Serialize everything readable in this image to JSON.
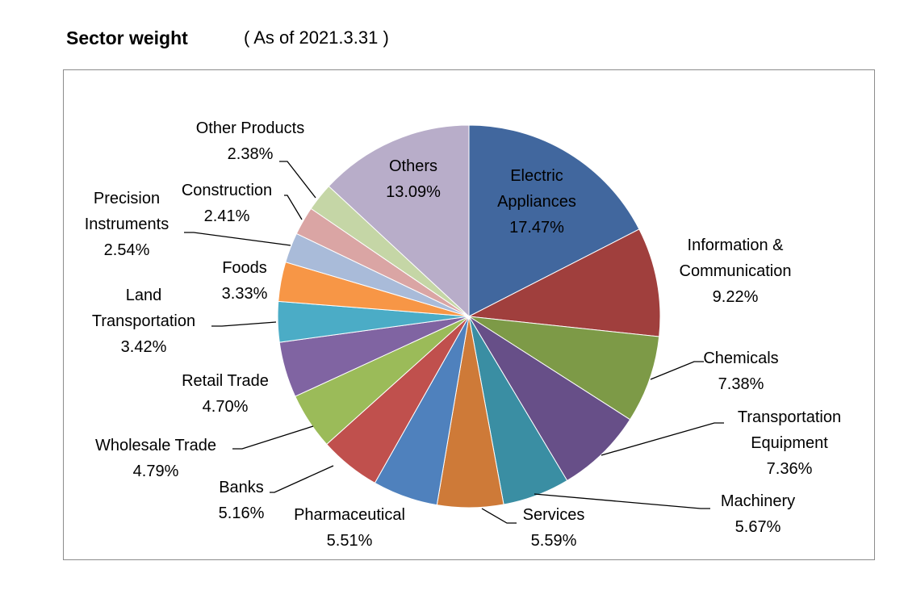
{
  "header": {
    "title": "Sector weight",
    "as_of": "( As of 2021.3.31 )"
  },
  "chart_data": {
    "type": "pie",
    "title": "Sector weight",
    "subtitle": "( As of 2021.3.31 )",
    "start": "12 o'clock",
    "direction": "clockwise",
    "slices": [
      {
        "name": "Electric Appliances",
        "value": 17.47,
        "label": "17.47%",
        "color": "#41679e"
      },
      {
        "name": "Information & Communication",
        "value": 9.22,
        "label": "9.22%",
        "color": "#a03f3d"
      },
      {
        "name": "Chemicals",
        "value": 7.38,
        "label": "7.38%",
        "color": "#7d9a47"
      },
      {
        "name": "Transportation Equipment",
        "value": 7.36,
        "label": "7.36%",
        "color": "#674f88"
      },
      {
        "name": "Machinery",
        "value": 5.67,
        "label": "5.67%",
        "color": "#3a8ea3"
      },
      {
        "name": "Services",
        "value": 5.59,
        "label": "5.59%",
        "color": "#ce7a38"
      },
      {
        "name": "Pharmaceutical",
        "value": 5.51,
        "label": "5.51%",
        "color": "#4f81bd"
      },
      {
        "name": "Banks",
        "value": 5.16,
        "label": "5.16%",
        "color": "#c0504d"
      },
      {
        "name": "Wholesale Trade",
        "value": 4.79,
        "label": "4.79%",
        "color": "#9bbb59"
      },
      {
        "name": "Retail Trade",
        "value": 4.7,
        "label": "4.70%",
        "color": "#8064a2"
      },
      {
        "name": "Land Transportation",
        "value": 3.42,
        "label": "3.42%",
        "color": "#4bacc6"
      },
      {
        "name": "Foods",
        "value": 3.33,
        "label": "3.33%",
        "color": "#f79646"
      },
      {
        "name": "Precision Instruments",
        "value": 2.54,
        "label": "2.54%",
        "color": "#a9bbd9"
      },
      {
        "name": "Construction",
        "value": 2.41,
        "label": "2.41%",
        "color": "#daa5a4"
      },
      {
        "name": "Other Products",
        "value": 2.38,
        "label": "2.38%",
        "color": "#c5d6a6"
      },
      {
        "name": "Others",
        "value": 13.09,
        "label": "13.09%",
        "color": "#b8adc9"
      }
    ],
    "labels": [
      {
        "lines": [
          "Electric",
          "Appliances",
          "17.47%"
        ]
      },
      {
        "lines": [
          "Information &",
          "Communication",
          "9.22%"
        ]
      },
      {
        "lines": [
          "Chemicals",
          "7.38%"
        ]
      },
      {
        "lines": [
          "Transportation",
          "Equipment",
          "7.36%"
        ]
      },
      {
        "lines": [
          "Machinery",
          "5.67%"
        ]
      },
      {
        "lines": [
          "Services",
          "5.59%"
        ]
      },
      {
        "lines": [
          "Pharmaceutical",
          "5.51%"
        ]
      },
      {
        "lines": [
          "Banks",
          "5.16%"
        ]
      },
      {
        "lines": [
          "Wholesale Trade",
          "4.79%"
        ]
      },
      {
        "lines": [
          "Retail Trade",
          "4.70%"
        ]
      },
      {
        "lines": [
          "Land",
          "Transportation",
          "3.42%"
        ]
      },
      {
        "lines": [
          "Foods",
          "3.33%"
        ]
      },
      {
        "lines": [
          "Precision",
          "Instruments",
          "2.54%"
        ]
      },
      {
        "lines": [
          "Construction",
          "2.41%"
        ]
      },
      {
        "lines": [
          "Other Products",
          "2.38%"
        ]
      },
      {
        "lines": [
          "Others",
          "13.09%"
        ]
      }
    ]
  }
}
